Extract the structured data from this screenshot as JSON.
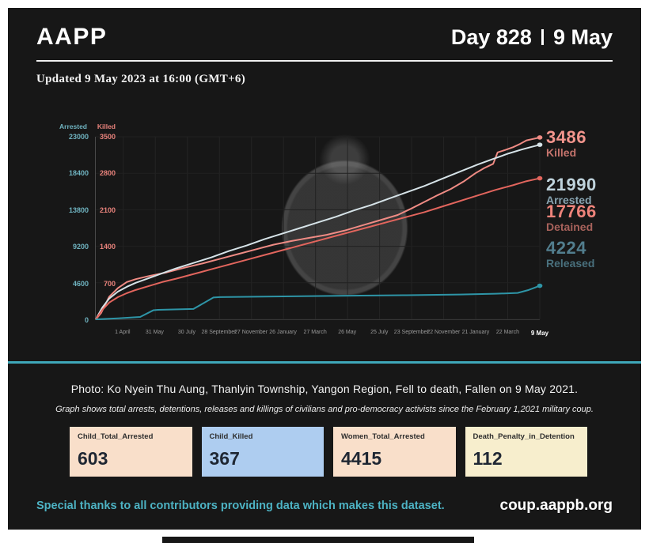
{
  "header": {
    "brand": "AAPP",
    "day": "Day 828",
    "date": "9 May"
  },
  "updated_line": "Updated 9 May 2023 at 16:00 (GMT+6)",
  "chart_data": {
    "type": "line",
    "description": "Cumulative totals of arrests, detentions, releases and killings since the 1 February 2021 military coup",
    "arrested_axis": {
      "title": "Arrested",
      "max": 23000,
      "ticks": [
        23000,
        18400,
        13800,
        9200,
        4600,
        0
      ],
      "color": "#6fb3c0"
    },
    "killed_axis": {
      "title": "Killed",
      "max": 3500,
      "ticks": [
        3500,
        2800,
        2100,
        1400,
        700,
        0
      ],
      "color": "#e8827b"
    },
    "x_ticks": [
      "1 April",
      "31 May",
      "30 July",
      "28 September",
      "27 November",
      "26 January",
      "27 March",
      "26 May",
      "25 July",
      "23 September",
      "22 November",
      "21 January",
      "22 March",
      "9 May"
    ],
    "grid": true,
    "series": [
      {
        "name": "Killed",
        "axis": "killed",
        "color": "#ef8b84",
        "final_value": 3486,
        "points": [
          [
            0,
            0
          ],
          [
            0.012,
            120
          ],
          [
            0.03,
            430
          ],
          [
            0.05,
            600
          ],
          [
            0.07,
            715
          ],
          [
            0.09,
            770
          ],
          [
            0.12,
            830
          ],
          [
            0.16,
            900
          ],
          [
            0.2,
            990
          ],
          [
            0.24,
            1070
          ],
          [
            0.28,
            1160
          ],
          [
            0.32,
            1250
          ],
          [
            0.36,
            1340
          ],
          [
            0.4,
            1430
          ],
          [
            0.44,
            1500
          ],
          [
            0.48,
            1560
          ],
          [
            0.52,
            1620
          ],
          [
            0.56,
            1700
          ],
          [
            0.6,
            1800
          ],
          [
            0.64,
            1900
          ],
          [
            0.68,
            2000
          ],
          [
            0.71,
            2120
          ],
          [
            0.74,
            2250
          ],
          [
            0.77,
            2380
          ],
          [
            0.8,
            2500
          ],
          [
            0.83,
            2650
          ],
          [
            0.855,
            2800
          ],
          [
            0.875,
            2900
          ],
          [
            0.895,
            2980
          ],
          [
            0.905,
            3200
          ],
          [
            0.92,
            3240
          ],
          [
            0.94,
            3300
          ],
          [
            0.955,
            3360
          ],
          [
            0.97,
            3430
          ],
          [
            1,
            3486
          ]
        ]
      },
      {
        "name": "Arrested",
        "axis": "arrested",
        "color": "#d6e3e8",
        "final_value": 21990,
        "points": [
          [
            0,
            0
          ],
          [
            0.015,
            1500
          ],
          [
            0.03,
            2600
          ],
          [
            0.05,
            3500
          ],
          [
            0.07,
            4100
          ],
          [
            0.09,
            4600
          ],
          [
            0.12,
            5200
          ],
          [
            0.15,
            5800
          ],
          [
            0.18,
            6400
          ],
          [
            0.22,
            7100
          ],
          [
            0.26,
            7800
          ],
          [
            0.3,
            8600
          ],
          [
            0.34,
            9300
          ],
          [
            0.38,
            10100
          ],
          [
            0.42,
            10800
          ],
          [
            0.46,
            11500
          ],
          [
            0.5,
            12200
          ],
          [
            0.54,
            12900
          ],
          [
            0.58,
            13700
          ],
          [
            0.62,
            14400
          ],
          [
            0.66,
            15200
          ],
          [
            0.7,
            16000
          ],
          [
            0.74,
            16800
          ],
          [
            0.78,
            17700
          ],
          [
            0.82,
            18600
          ],
          [
            0.86,
            19500
          ],
          [
            0.9,
            20300
          ],
          [
            0.93,
            20900
          ],
          [
            0.96,
            21400
          ],
          [
            0.98,
            21700
          ],
          [
            1,
            21990
          ]
        ]
      },
      {
        "name": "Detained",
        "axis": "arrested",
        "color": "#e2655d",
        "final_value": 17766,
        "points": [
          [
            0,
            0
          ],
          [
            0.015,
            1200
          ],
          [
            0.03,
            2100
          ],
          [
            0.05,
            2800
          ],
          [
            0.07,
            3300
          ],
          [
            0.09,
            3700
          ],
          [
            0.12,
            4200
          ],
          [
            0.15,
            4700
          ],
          [
            0.18,
            5100
          ],
          [
            0.22,
            5700
          ],
          [
            0.26,
            6300
          ],
          [
            0.3,
            6900
          ],
          [
            0.34,
            7500
          ],
          [
            0.38,
            8100
          ],
          [
            0.42,
            8700
          ],
          [
            0.46,
            9300
          ],
          [
            0.5,
            9900
          ],
          [
            0.54,
            10500
          ],
          [
            0.58,
            11100
          ],
          [
            0.62,
            11700
          ],
          [
            0.66,
            12300
          ],
          [
            0.7,
            12900
          ],
          [
            0.74,
            13500
          ],
          [
            0.78,
            14200
          ],
          [
            0.82,
            14900
          ],
          [
            0.86,
            15600
          ],
          [
            0.9,
            16300
          ],
          [
            0.94,
            16900
          ],
          [
            0.97,
            17400
          ],
          [
            1,
            17766
          ]
        ]
      },
      {
        "name": "Released",
        "axis": "arrested",
        "color": "#2e95a7",
        "final_value": 4224,
        "points": [
          [
            0,
            0
          ],
          [
            0.05,
            120
          ],
          [
            0.1,
            300
          ],
          [
            0.13,
            1150
          ],
          [
            0.14,
            1200
          ],
          [
            0.22,
            1300
          ],
          [
            0.265,
            2750
          ],
          [
            0.28,
            2800
          ],
          [
            0.4,
            2880
          ],
          [
            0.55,
            2960
          ],
          [
            0.7,
            3040
          ],
          [
            0.82,
            3120
          ],
          [
            0.9,
            3220
          ],
          [
            0.95,
            3320
          ],
          [
            0.975,
            3700
          ],
          [
            1,
            4224
          ]
        ]
      }
    ]
  },
  "annotations": [
    {
      "value": "3486",
      "label": "Killed",
      "value_color": "#f2948c",
      "label_color": "#c4736c"
    },
    {
      "value": "21990",
      "label": "Arrested",
      "value_color": "#bfd3dc",
      "label_color": "#87a3b0"
    },
    {
      "value": "17766",
      "label": "Detained",
      "value_color": "#ee837a",
      "label_color": "#a8625b"
    },
    {
      "value": "4224",
      "label": "Released",
      "value_color": "#527e8e",
      "label_color": "#49707d"
    }
  ],
  "photo_caption": "Photo: Ko Nyein Thu Aung, Thanlyin Township, Yangon Region, Fell to death, Fallen on 9 May 2021.",
  "graph_note": "Graph shows total arrests, detentions, releases and killings of civilians and pro-democracy activists since the February 1,2021 military coup.",
  "stat_cards": [
    {
      "label": "Child_Total_Arrested",
      "value": "603",
      "bg": "#f9dfca"
    },
    {
      "label": "Child_Killed",
      "value": "367",
      "bg": "#aecdf0"
    },
    {
      "label": "Women_Total_Arrested",
      "value": "4415",
      "bg": "#f9dfca"
    },
    {
      "label": "Death_Penalty_in_Detention",
      "value": "112",
      "bg": "#f7eecd"
    }
  ],
  "footer": {
    "thanks": "Special thanks to all contributors providing data which makes this dataset.",
    "website": "coup.aappb.org"
  },
  "colors": {
    "panel_bg": "#171717",
    "divider_teal": "#3fa8ba",
    "footer_teal": "#4db3c4"
  }
}
